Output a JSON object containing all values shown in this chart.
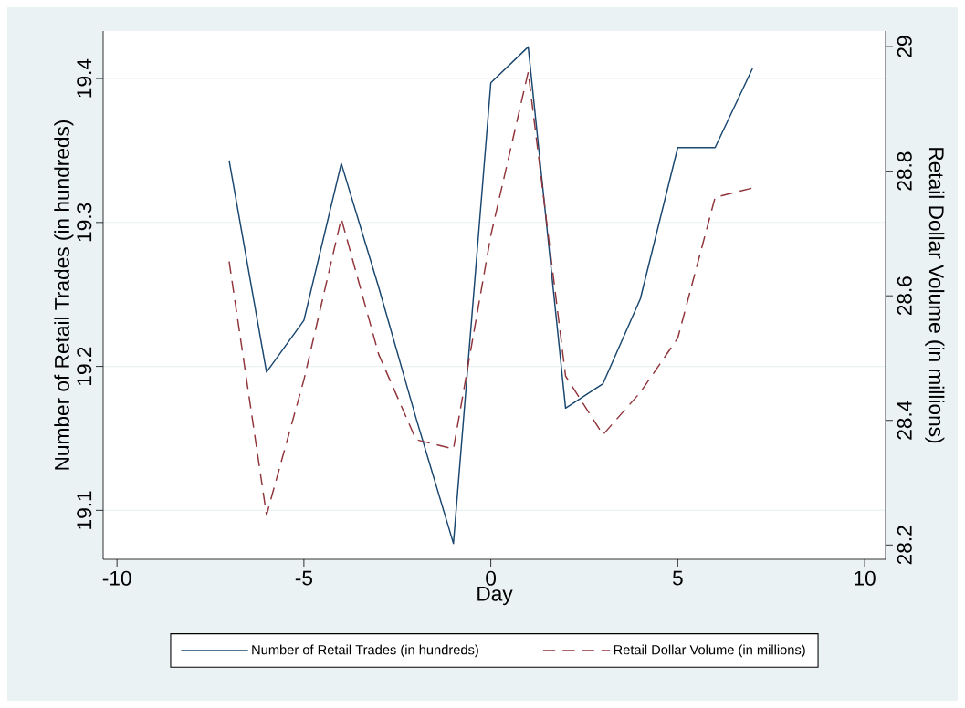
{
  "chart_data": {
    "type": "line",
    "xlabel": "Day",
    "ylabel": "Number of Retail Trades (in hundreds)",
    "y2label": "Retail Dollar Volume (in millions)",
    "x": [
      -7,
      -6,
      -5,
      -4,
      -3,
      -2,
      -1,
      0,
      1,
      2,
      3,
      4,
      5,
      6,
      7
    ],
    "series": [
      {
        "name": "Number of Retail Trades (in hundreds)",
        "color": "#1a476f",
        "line_style": "solid",
        "values": [
          19.343,
          19.196,
          19.232,
          19.341,
          19.255,
          19.164,
          19.077,
          19.397,
          19.422,
          19.171,
          19.188,
          19.247,
          19.352,
          19.352,
          19.407
        ]
      },
      {
        "name": "Retail Dollar Volume (in millions)",
        "color": "#90353b",
        "line_style": "dashed",
        "axis": "y2",
        "values": [
          28.655,
          28.248,
          28.465,
          28.724,
          28.506,
          28.369,
          28.354,
          28.697,
          28.959,
          28.471,
          28.377,
          28.445,
          28.532,
          28.758,
          28.773
        ]
      }
    ],
    "xlim": [
      -10.37,
      10.56
    ],
    "xticks": [
      -10,
      -5,
      0,
      5,
      10
    ],
    "ylim": [
      19.066,
      19.433
    ],
    "yticks": [
      19.1,
      19.2,
      19.3,
      19.4
    ],
    "y2lim": [
      28.177,
      29.025
    ],
    "y2ticks": [
      28.2,
      28.4,
      28.6,
      28.8,
      29
    ],
    "grid": "y",
    "legend": "bottom"
  }
}
